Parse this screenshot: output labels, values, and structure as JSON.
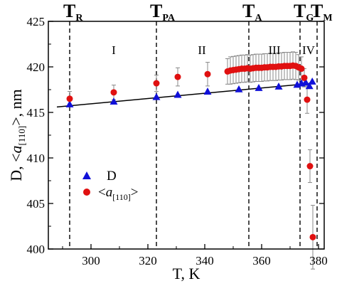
{
  "chart_data": {
    "type": "scatter",
    "xlabel": "T, K",
    "ylabel_parts": [
      "D, <",
      "a",
      "[110]",
      ">, nm"
    ],
    "xlim": [
      285,
      382
    ],
    "ylim": [
      400,
      425
    ],
    "xticks": [
      300,
      320,
      340,
      360,
      380
    ],
    "yticks": [
      400,
      405,
      410,
      415,
      420,
      425
    ],
    "transition_lines": [
      {
        "x": 292.5,
        "main": "T",
        "sub": "R"
      },
      {
        "x": 323,
        "main": "T",
        "sub": "PA"
      },
      {
        "x": 355.5,
        "main": "T",
        "sub": "A"
      },
      {
        "x": 373.5,
        "main": "T",
        "sub": "G"
      },
      {
        "x": 379.5,
        "main": "T",
        "sub": "M"
      }
    ],
    "regions": [
      {
        "label": "I",
        "x": 308
      },
      {
        "label": "II",
        "x": 339
      },
      {
        "label": "III",
        "x": 364.5
      },
      {
        "label": "IV",
        "x": 376.5
      }
    ],
    "fit_line": {
      "x": [
        288,
        378
      ],
      "y": [
        415.6,
        418.2
      ]
    },
    "series": [
      {
        "name": "D",
        "legend_text": "D",
        "color": "#1010d8",
        "marker": "triangle",
        "x": [
          292.5,
          308,
          323,
          330.5,
          341,
          352,
          359,
          366,
          372.5,
          374,
          375.5,
          376.8,
          377.8
        ],
        "y": [
          415.9,
          416.2,
          416.7,
          416.95,
          417.3,
          417.55,
          417.7,
          417.85,
          418.05,
          418.2,
          418.3,
          417.9,
          418.4
        ]
      },
      {
        "name": "a110",
        "legend_parts": [
          "<",
          "a",
          "[110]",
          ">"
        ],
        "color": "#e01010",
        "marker": "circle",
        "x": [
          292.5,
          308,
          323,
          330.5,
          341,
          348,
          349,
          350,
          351,
          352,
          353,
          354,
          355,
          356,
          357,
          358,
          359,
          360,
          361,
          362,
          363,
          364,
          365,
          366,
          367,
          368,
          369,
          370,
          371,
          372,
          373,
          374,
          375,
          376,
          377,
          378
        ],
        "y": [
          416.5,
          417.2,
          418.2,
          418.9,
          419.2,
          419.5,
          419.6,
          419.65,
          419.7,
          419.75,
          419.8,
          419.8,
          419.85,
          419.8,
          419.85,
          419.9,
          419.9,
          419.9,
          419.95,
          419.95,
          420.0,
          420.0,
          420.0,
          420.05,
          420.05,
          420.1,
          420.1,
          420.1,
          420.15,
          420.1,
          419.95,
          419.8,
          418.8,
          416.4,
          409.1,
          401.3
        ],
        "err": [
          0.8,
          0.8,
          0.9,
          1.0,
          1.3,
          1.4,
          1.5,
          1.5,
          1.5,
          1.5,
          1.5,
          1.5,
          1.5,
          1.5,
          1.5,
          1.5,
          1.5,
          1.5,
          1.5,
          1.5,
          1.5,
          1.5,
          1.5,
          1.5,
          1.5,
          1.5,
          1.5,
          1.5,
          1.5,
          1.5,
          1.4,
          1.3,
          1.0,
          1.5,
          1.8,
          3.5
        ]
      }
    ]
  }
}
